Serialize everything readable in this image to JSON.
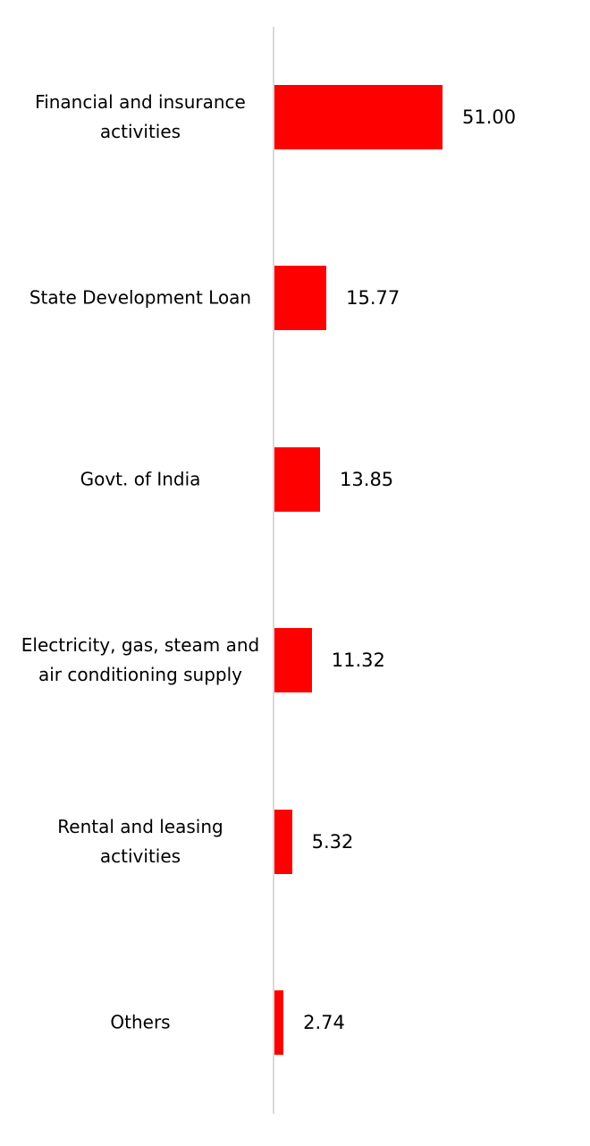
{
  "chart_data": {
    "type": "bar",
    "orientation": "horizontal",
    "categories": [
      "Financial and insurance activities",
      "State Development Loan",
      "Govt. of India",
      "Electricity, gas, steam and air conditioning supply",
      "Rental and leasing activities",
      "Others"
    ],
    "values": [
      51.0,
      15.77,
      13.85,
      11.32,
      5.32,
      2.74
    ],
    "value_labels": [
      "51.00",
      "15.77",
      "13.85",
      "11.32",
      "5.32",
      "2.74"
    ],
    "color": "#ff0000"
  }
}
